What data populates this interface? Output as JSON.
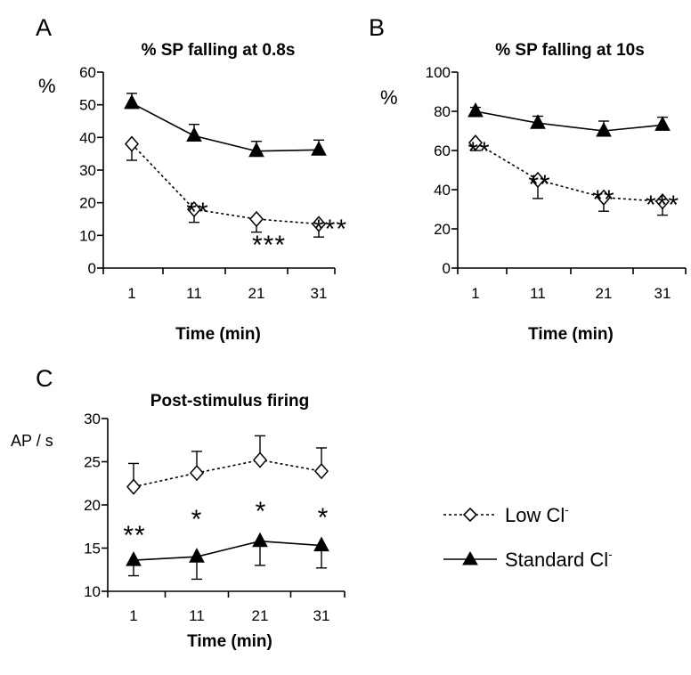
{
  "legend": {
    "low_label": "Low Cl",
    "low_sup": "-",
    "std_label": "Standard Cl",
    "std_sup": "-"
  },
  "chart_data": [
    {
      "panel": "A",
      "type": "line",
      "title": "% SP falling at 0.8s",
      "xlabel": "Time (min)",
      "ylabel": "%",
      "x": [
        1,
        11,
        21,
        31
      ],
      "ylim": [
        0,
        60
      ],
      "yticks": [
        0,
        10,
        20,
        30,
        40,
        50,
        60
      ],
      "series": [
        {
          "name": "Standard Cl-",
          "values": [
            50.5,
            40.5,
            35.8,
            36.2
          ],
          "error_up": [
            3,
            3.5,
            3,
            3
          ]
        },
        {
          "name": "Low Cl-",
          "values": [
            38,
            18,
            15,
            13.5
          ],
          "error_down": [
            5,
            4,
            4,
            4
          ]
        }
      ],
      "significance": [
        "",
        "**",
        "***",
        "***"
      ]
    },
    {
      "panel": "B",
      "type": "line",
      "title": "% SP falling at 10s",
      "xlabel": "Time (min)",
      "ylabel": "%",
      "x": [
        1,
        11,
        21,
        31
      ],
      "ylim": [
        0,
        100
      ],
      "yticks": [
        0,
        20,
        40,
        60,
        80,
        100
      ],
      "series": [
        {
          "name": "Standard Cl-",
          "values": [
            80,
            74,
            70,
            73
          ],
          "error_up": [
            2,
            3.5,
            5,
            4
          ]
        },
        {
          "name": "Low Cl-",
          "values": [
            64,
            45,
            36,
            34
          ],
          "error_down": [
            4,
            9.5,
            7,
            7
          ]
        }
      ],
      "significance": [
        "**",
        "**",
        "**",
        "***"
      ]
    },
    {
      "panel": "C",
      "type": "line",
      "title": "Post-stimulus firing",
      "xlabel": "Time (min)",
      "ylabel": "AP / s",
      "x": [
        1,
        11,
        21,
        31
      ],
      "ylim": [
        10,
        30
      ],
      "yticks": [
        10,
        15,
        20,
        25,
        30
      ],
      "series": [
        {
          "name": "Low Cl-",
          "values": [
            22.1,
            23.7,
            25.2,
            23.9
          ],
          "error_up": [
            2.7,
            2.5,
            2.8,
            2.7
          ]
        },
        {
          "name": "Standard Cl-",
          "values": [
            13.6,
            14,
            15.8,
            15.3
          ],
          "error_down": [
            1.8,
            2.6,
            2.8,
            2.6
          ]
        }
      ],
      "significance": [
        "**",
        "*",
        "*",
        "*"
      ]
    }
  ]
}
